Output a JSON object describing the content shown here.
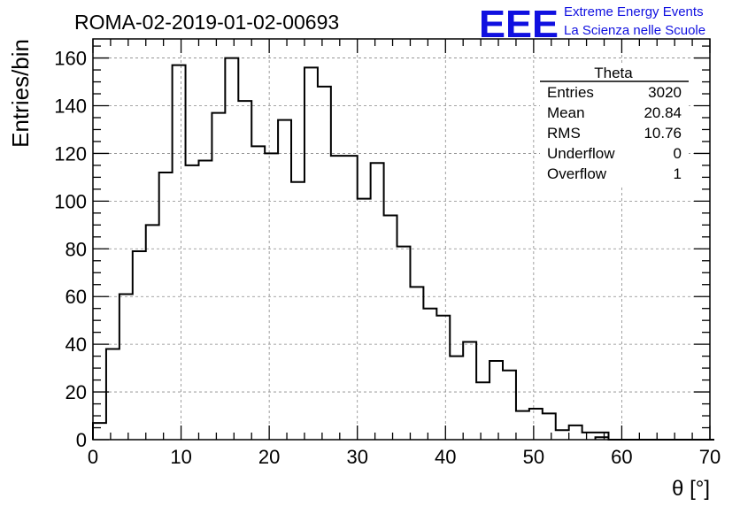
{
  "title": "ROMA-02-2019-01-02-00693",
  "logo": {
    "letters": "EEE",
    "line1": "Extreme Energy Events",
    "line2": "La Scienza nelle Scuole",
    "color": "#1010e0"
  },
  "stats_box": {
    "name": "Theta",
    "rows": [
      {
        "label": "Entries",
        "value": "3020"
      },
      {
        "label": "Mean",
        "value": "20.84"
      },
      {
        "label": "RMS",
        "value": "10.76"
      },
      {
        "label": "Underflow",
        "value": "0"
      },
      {
        "label": "Overflow",
        "value": "1"
      }
    ]
  },
  "chart_data": {
    "type": "bar",
    "histogram": true,
    "title": "ROMA-02-2019-01-02-00693",
    "xlabel": "θ [°]",
    "ylabel": "Entries/bin",
    "xlim": [
      0,
      70
    ],
    "ylim": [
      0,
      168
    ],
    "bin_width": 1.5,
    "x_ticks": [
      "0",
      "10",
      "20",
      "30",
      "40",
      "50",
      "60",
      "70"
    ],
    "y_ticks": [
      "0",
      "20",
      "40",
      "60",
      "80",
      "100",
      "120",
      "140",
      "160"
    ],
    "grid": true,
    "values": [
      7,
      38,
      61,
      79,
      90,
      112,
      157,
      115,
      117,
      137,
      160,
      142,
      123,
      120,
      134,
      108,
      156,
      148,
      119,
      119,
      101,
      116,
      94,
      81,
      64,
      55,
      52,
      35,
      41,
      24,
      33,
      29,
      12,
      13,
      11,
      4,
      6,
      3,
      3,
      0,
      0,
      0,
      0,
      0,
      0,
      0,
      0
    ],
    "values_extra": [
      {
        "x_start": 57.0,
        "value": 1
      }
    ],
    "line_color": "#000000"
  }
}
